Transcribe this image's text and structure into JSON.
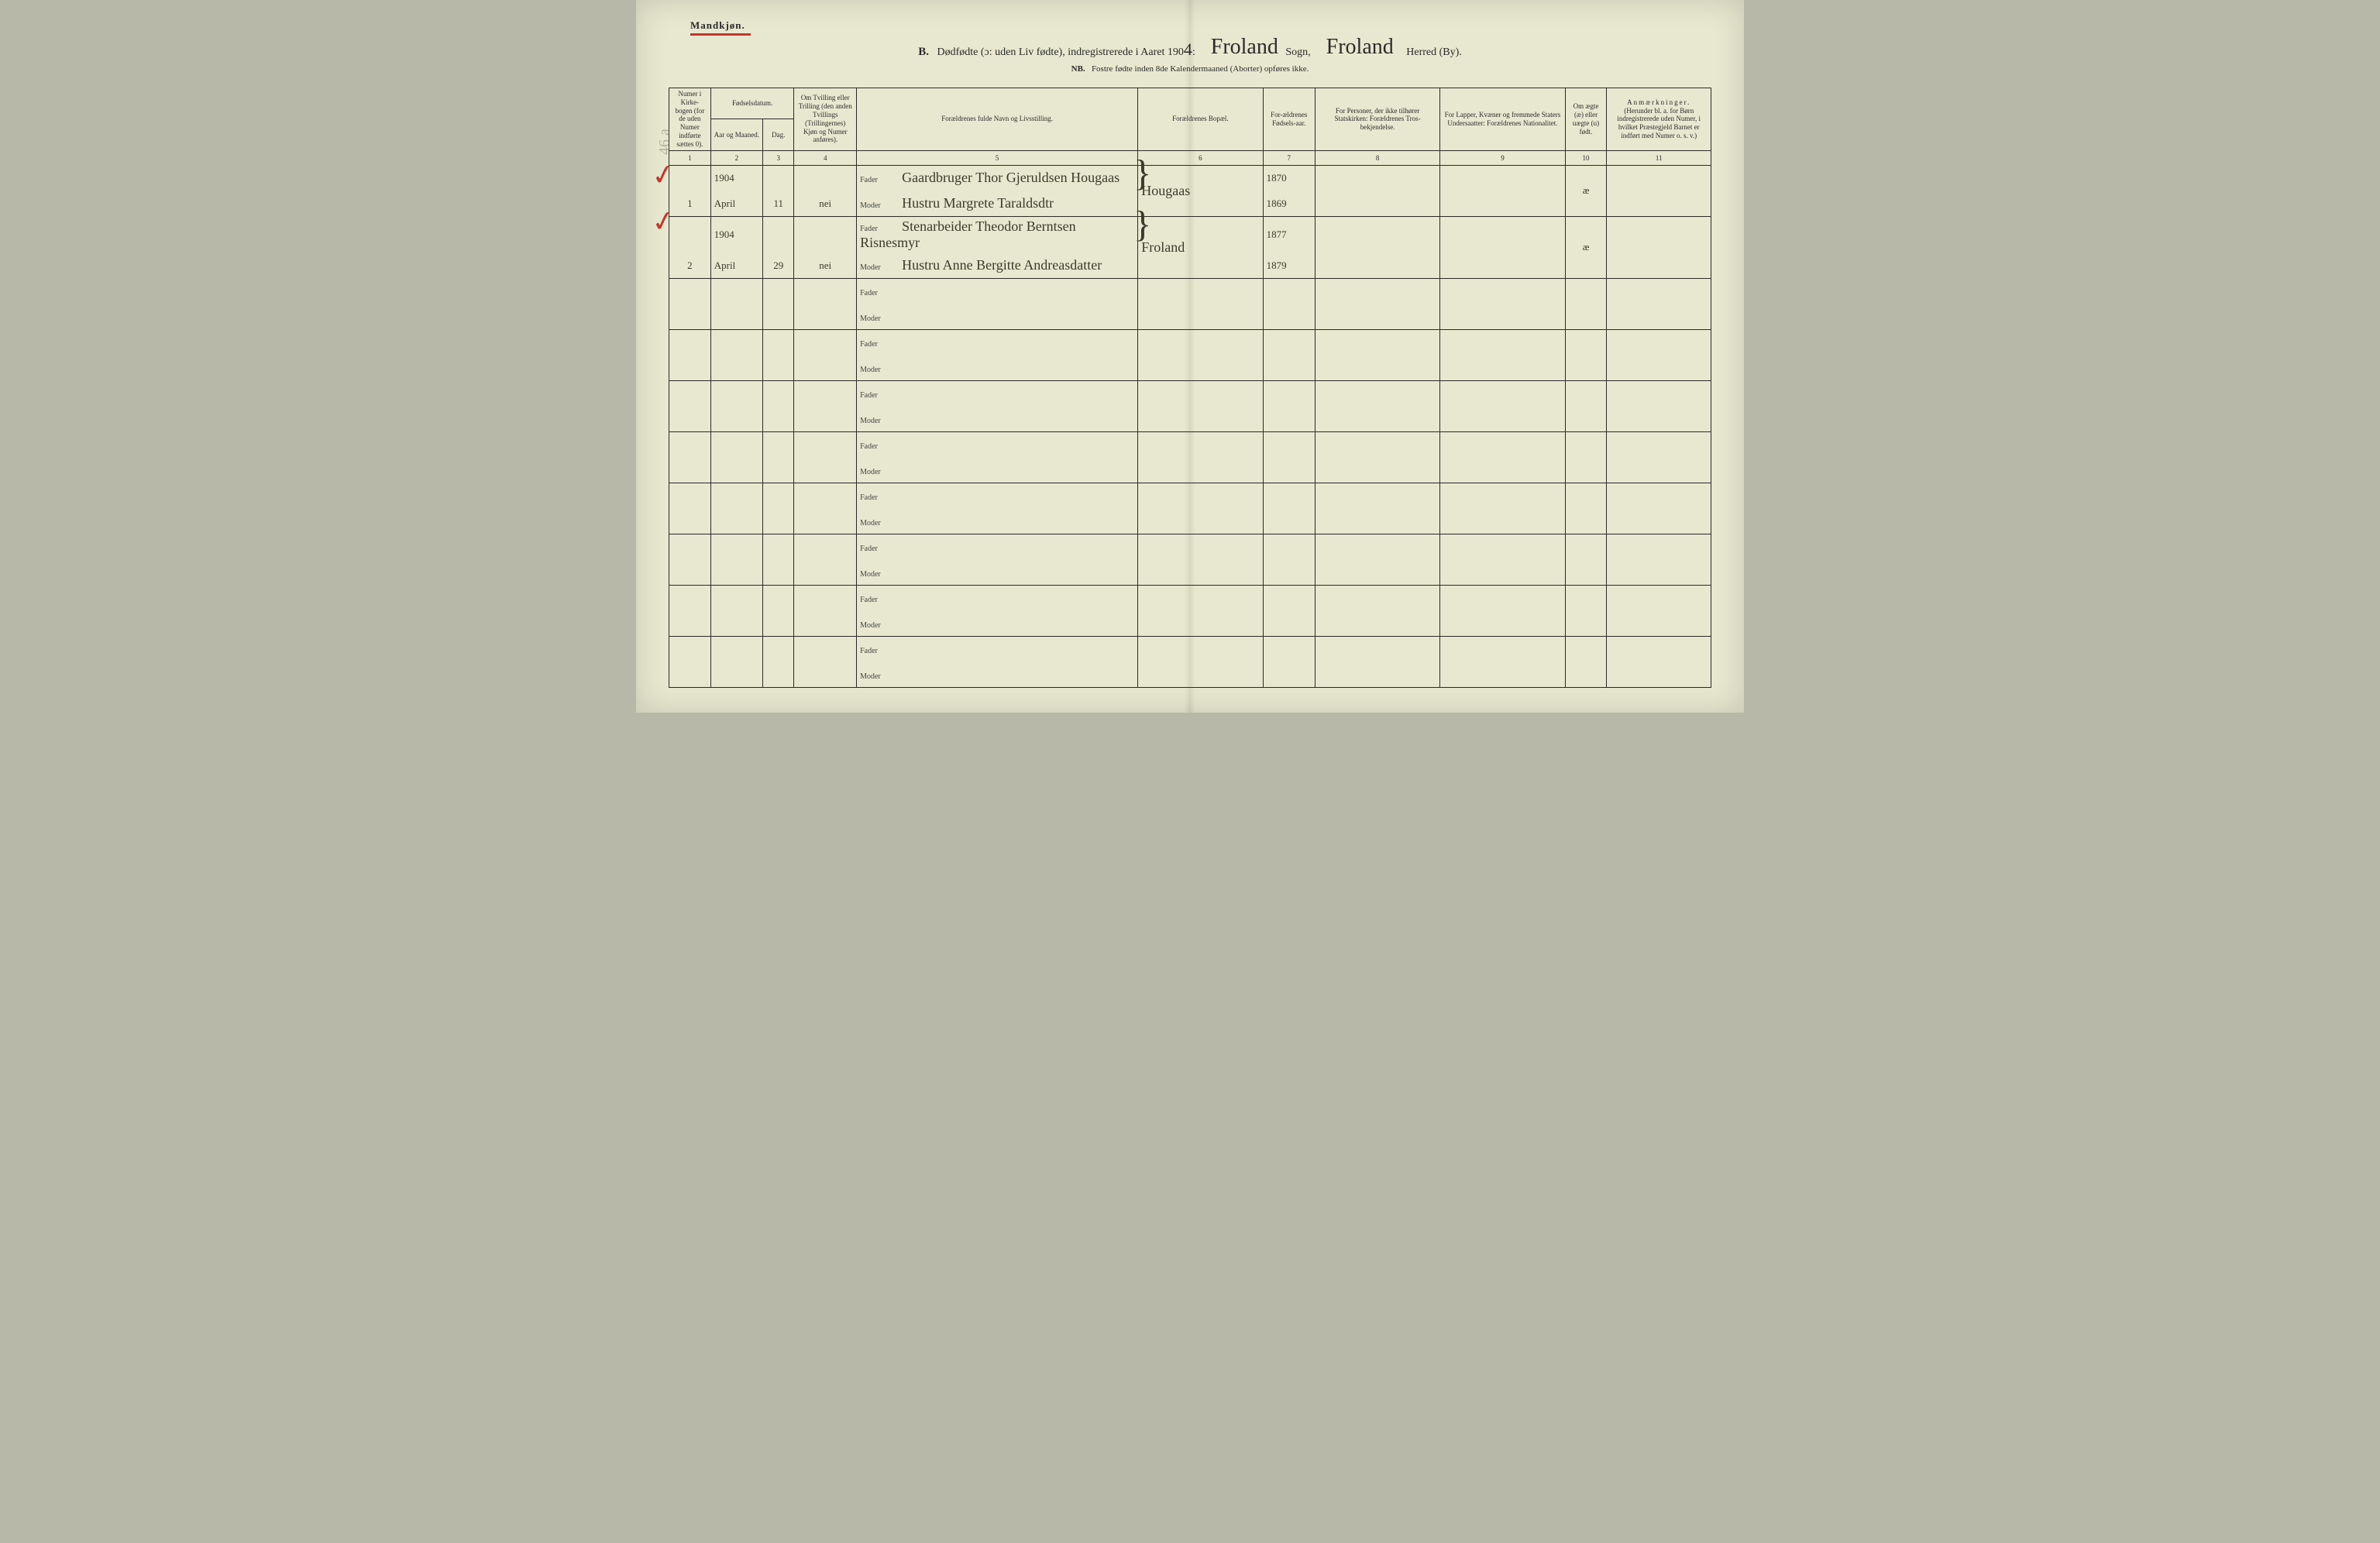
{
  "header": {
    "top_left": "Mandkjøn.",
    "prefix": "B.",
    "title_main": "Dødfødte (ɔ: uden Liv fødte), indregistrerede i Aaret 190",
    "year_suffix_hand": "4",
    "sogn_cursive": "Froland",
    "sogn_label": "Sogn,",
    "herred_cursive": "Froland",
    "herred_label": "Herred (By).",
    "subtitle_nb": "NB.",
    "subtitle_rest": "Fostre fødte inden 8de Kalendermaaned (Aborter) opføres ikke."
  },
  "columns": {
    "c1": "Numer i Kirke-bogen (for de uden Numer indførte sættes 0).",
    "c2_top": "Fødselsdatum.",
    "c2a": "Aar og Maaned.",
    "c2b": "Dag.",
    "c4": "Om Tvilling eller Trilling (den anden Tvillings (Trillingernes) Kjøn og Numer anføres).",
    "c5": "Forældrenes fulde Navn og Livsstilling.",
    "c6": "Forældrenes Bopæl.",
    "c7": "For-ældrenes Fødsels-aar.",
    "c8": "For Personer, der ikke tilhører Statskirken: Forældrenes Tros-bekjendelse.",
    "c9": "For Lapper, Kvæner og fremmede Staters Undersaatter: Forældrenes Nationalitet.",
    "c10": "Om ægte (æ) eller uægte (u) født.",
    "c11_top": "Anmærkninger.",
    "c11_sub": "(Herunder bl. a. for Børn indregistrerede uden Numer, i hvilket Præstegjeld Barnet er indført med Numer o. s. v.)"
  },
  "colnums": [
    "1",
    "2",
    "3",
    "4",
    "5",
    "6",
    "7",
    "8",
    "9",
    "10",
    "11"
  ],
  "fader_label": "Fader",
  "moder_label": "Moder",
  "entries": [
    {
      "num": "1",
      "year_month": "1904",
      "month_name": "April",
      "day": "11",
      "twin": "nei",
      "fader": "Gaardbruger Thor Gjeruldsen Hougaas",
      "moder": "Hustru Margrete Taraldsdtr",
      "bopael": "Hougaas",
      "fader_aar": "1870",
      "moder_aar": "1869",
      "aegte": "æ"
    },
    {
      "num": "2",
      "year_month": "1904",
      "month_name": "April",
      "day": "29",
      "twin": "nei",
      "fader": "Stenarbeider Theodor Berntsen Risnesmyr",
      "moder": "Hustru Anne Bergitte Andreasdatter",
      "bopael": "Froland",
      "fader_aar": "1877",
      "moder_aar": "1879",
      "aegte": "æ"
    }
  ],
  "blank_rows": 8,
  "style": {
    "page_bg": "#e8e8d0",
    "ink": "#2a2a2a",
    "red": "#c0392b",
    "hand_color": "#3a3a2a",
    "cursive_font": "Brush Script MT",
    "base_font": "Georgia",
    "col_widths_pct": [
      4,
      5,
      3,
      6,
      27,
      12,
      5,
      12,
      12,
      4,
      10
    ]
  }
}
